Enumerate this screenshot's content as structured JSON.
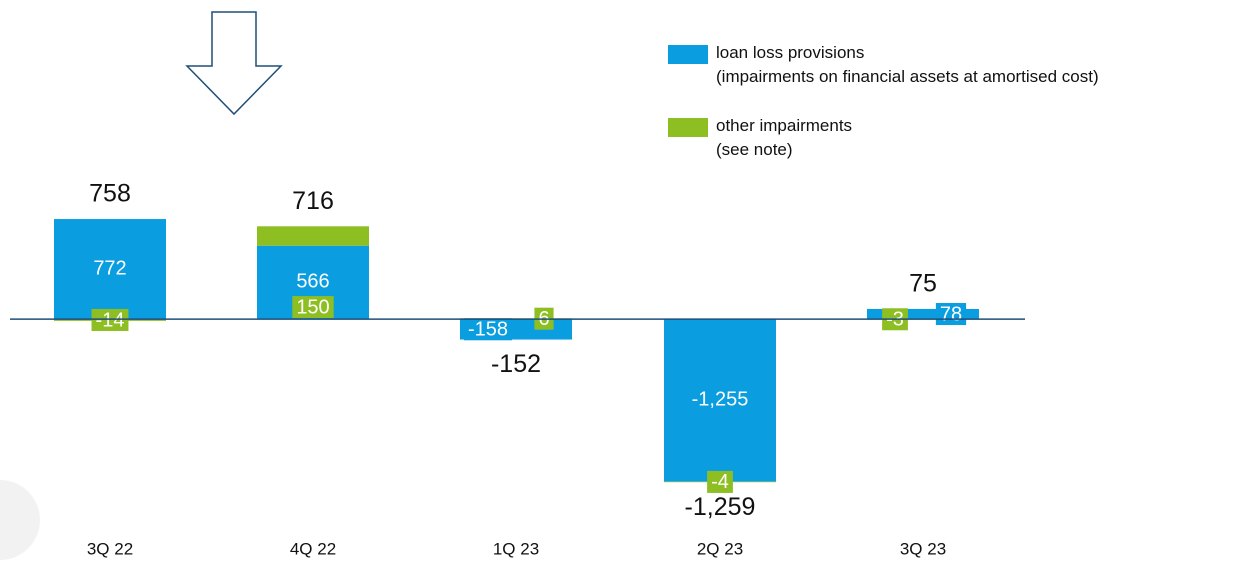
{
  "chart_data": {
    "type": "stacked_bar",
    "categories": [
      "3Q 22",
      "4Q 22",
      "1Q 23",
      "2Q 23",
      "3Q 23"
    ],
    "series": [
      {
        "name": "loan loss provisions\n(impairments on financial assets at amortised cost)",
        "color": "#0a9ee0",
        "values": [
          772,
          566,
          -158,
          -1255,
          78
        ],
        "value_labels": [
          "772",
          "566",
          "-158",
          "-1,255",
          "78"
        ]
      },
      {
        "name": "other impairments\n(see note)",
        "color": "#8dbe22",
        "values": [
          -14,
          150,
          6,
          -4,
          -3
        ]
      }
    ],
    "totals": {
      "values": [
        758,
        716,
        -152,
        -1259,
        75
      ],
      "value_labels": [
        "758",
        "716",
        "-152",
        "-1,259",
        "75"
      ]
    },
    "ylim": [
      -1300,
      1000
    ]
  }
}
